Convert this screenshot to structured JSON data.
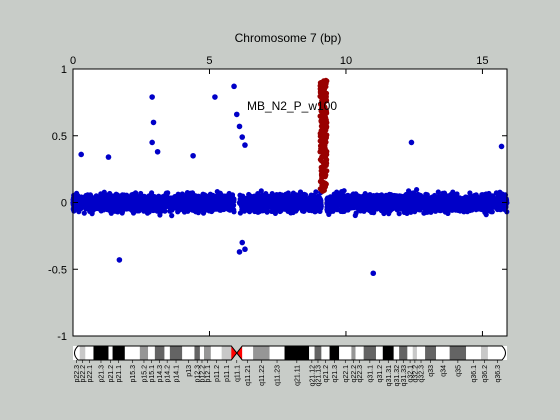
{
  "chart_data": {
    "type": "scatter",
    "title": "Chromosome 7 (bp)",
    "xlabel": "",
    "ylabel": "",
    "xlim": [
      0,
      15.9
    ],
    "ylim": [
      -1,
      1
    ],
    "x_ticks": [
      0,
      5,
      10,
      15
    ],
    "y_ticks": [
      -1,
      -0.5,
      0,
      0.5,
      1
    ],
    "y_tick_labels": [
      "-1",
      "-0.5",
      "0",
      "0.5",
      "1"
    ],
    "grid": false,
    "annotation": "MB_N2_P_w100",
    "colors": {
      "background": "#c8ccc8",
      "plot_bg": "#ffffff",
      "normal_points": "#0000c8",
      "highlight_points": "#990000",
      "zero_line": "#b4b4b4",
      "centromere": "#ff0000"
    },
    "series": [
      {
        "role": "normal",
        "description_values": "dense band of points between about -0.3 and 0.3 across the chromosome",
        "segments": [
          [
            0.0,
            5.9
          ],
          [
            6.1,
            9.1
          ],
          [
            9.3,
            15.9
          ]
        ],
        "band": [
          -0.3,
          0.32
        ],
        "outliers": [
          [
            1.7,
            -0.43
          ],
          [
            2.9,
            0.79
          ],
          [
            2.95,
            0.6
          ],
          [
            2.9,
            0.45
          ],
          [
            5.2,
            0.79
          ],
          [
            5.9,
            0.87
          ],
          [
            6.0,
            0.66
          ],
          [
            6.1,
            0.57
          ],
          [
            6.2,
            0.49
          ],
          [
            6.3,
            0.43
          ],
          [
            6.1,
            -0.37
          ],
          [
            6.2,
            -0.3
          ],
          [
            6.3,
            -0.35
          ],
          [
            11.0,
            -0.53
          ],
          [
            12.4,
            0.45
          ],
          [
            15.7,
            0.42
          ],
          [
            0.3,
            0.36
          ],
          [
            1.3,
            0.34
          ],
          [
            3.1,
            0.38
          ],
          [
            4.4,
            0.35
          ]
        ]
      },
      {
        "role": "highlight",
        "description_values": "dark red cluster of high values around x≈9.1–9.25",
        "x_range": [
          9.05,
          9.3
        ],
        "y_range": [
          0.05,
          0.92
        ]
      }
    ]
  },
  "ideogram": {
    "bands": [
      {
        "label": "p22.3",
        "start": 0.0,
        "end": 0.25,
        "stain": "gneg"
      },
      {
        "label": "p22.2",
        "start": 0.25,
        "end": 0.45,
        "stain": "gpos25"
      },
      {
        "label": "p22.1",
        "start": 0.45,
        "end": 0.75,
        "stain": "gneg"
      },
      {
        "label": "p21.3",
        "start": 0.75,
        "end": 1.3,
        "stain": "gpos100"
      },
      {
        "label": "p21.2",
        "start": 1.3,
        "end": 1.45,
        "stain": "gneg"
      },
      {
        "label": "p21.1",
        "start": 1.45,
        "end": 1.9,
        "stain": "gpos100"
      },
      {
        "label": "p15.3",
        "start": 1.9,
        "end": 2.45,
        "stain": "gneg"
      },
      {
        "label": "p15.2",
        "start": 2.45,
        "end": 2.75,
        "stain": "gpos50"
      },
      {
        "label": "p15.1",
        "start": 2.75,
        "end": 3.0,
        "stain": "gneg"
      },
      {
        "label": "p14.3",
        "start": 3.0,
        "end": 3.35,
        "stain": "gpos75"
      },
      {
        "label": "p14.2",
        "start": 3.35,
        "end": 3.55,
        "stain": "gneg"
      },
      {
        "label": "p14.1",
        "start": 3.55,
        "end": 4.0,
        "stain": "gpos75"
      },
      {
        "label": "p13",
        "start": 4.0,
        "end": 4.45,
        "stain": "gneg"
      },
      {
        "label": "p12.3",
        "start": 4.45,
        "end": 4.65,
        "stain": "gpos75"
      },
      {
        "label": "p12.2",
        "start": 4.65,
        "end": 4.8,
        "stain": "gneg"
      },
      {
        "label": "p12.1",
        "start": 4.8,
        "end": 5.05,
        "stain": "gpos50"
      },
      {
        "label": "p11.2",
        "start": 5.05,
        "end": 5.45,
        "stain": "gneg"
      },
      {
        "label": "p11.1",
        "start": 5.45,
        "end": 5.8,
        "stain": "gpos25"
      },
      {
        "label": "q11.1",
        "start": 5.8,
        "end": 6.2,
        "stain": "acen"
      },
      {
        "label": "q11.21",
        "start": 6.2,
        "end": 6.6,
        "stain": "gneg"
      },
      {
        "label": "q11.22",
        "start": 6.6,
        "end": 7.2,
        "stain": "gpos50"
      },
      {
        "label": "q11.23",
        "start": 7.2,
        "end": 7.75,
        "stain": "gneg"
      },
      {
        "label": "q21.11",
        "start": 7.75,
        "end": 8.65,
        "stain": "gpos100"
      },
      {
        "label": "q21.12",
        "start": 8.65,
        "end": 8.85,
        "stain": "gneg"
      },
      {
        "label": "q21.13",
        "start": 8.85,
        "end": 9.1,
        "stain": "gpos75"
      },
      {
        "label": "q21.2",
        "start": 9.1,
        "end": 9.4,
        "stain": "gneg"
      },
      {
        "label": "q21.3",
        "start": 9.4,
        "end": 9.75,
        "stain": "gpos100"
      },
      {
        "label": "q22.1",
        "start": 9.75,
        "end": 10.2,
        "stain": "gneg"
      },
      {
        "label": "q22.2",
        "start": 10.2,
        "end": 10.35,
        "stain": "gpos50"
      },
      {
        "label": "q22.3",
        "start": 10.35,
        "end": 10.65,
        "stain": "gneg"
      },
      {
        "label": "q31.1",
        "start": 10.65,
        "end": 11.1,
        "stain": "gpos75"
      },
      {
        "label": "q31.2",
        "start": 11.1,
        "end": 11.35,
        "stain": "gneg"
      },
      {
        "label": "q31.31",
        "start": 11.35,
        "end": 11.75,
        "stain": "gpos100"
      },
      {
        "label": "q31.32",
        "start": 11.75,
        "end": 11.95,
        "stain": "gneg"
      },
      {
        "label": "q31.33",
        "start": 11.95,
        "end": 12.25,
        "stain": "gpos75"
      },
      {
        "label": "q32.1",
        "start": 12.25,
        "end": 12.45,
        "stain": "gneg"
      },
      {
        "label": "q32.2",
        "start": 12.45,
        "end": 12.6,
        "stain": "gpos25"
      },
      {
        "label": "q32.3",
        "start": 12.6,
        "end": 12.9,
        "stain": "gneg"
      },
      {
        "label": "q33",
        "start": 12.9,
        "end": 13.3,
        "stain": "gpos75"
      },
      {
        "label": "q34",
        "start": 13.3,
        "end": 13.8,
        "stain": "gneg"
      },
      {
        "label": "q35",
        "start": 13.8,
        "end": 14.4,
        "stain": "gpos75"
      },
      {
        "label": "q36.1",
        "start": 14.4,
        "end": 14.95,
        "stain": "gneg"
      },
      {
        "label": "q36.2",
        "start": 14.95,
        "end": 15.2,
        "stain": "gpos25"
      },
      {
        "label": "q36.3",
        "start": 15.2,
        "end": 15.9,
        "stain": "gneg"
      }
    ]
  }
}
